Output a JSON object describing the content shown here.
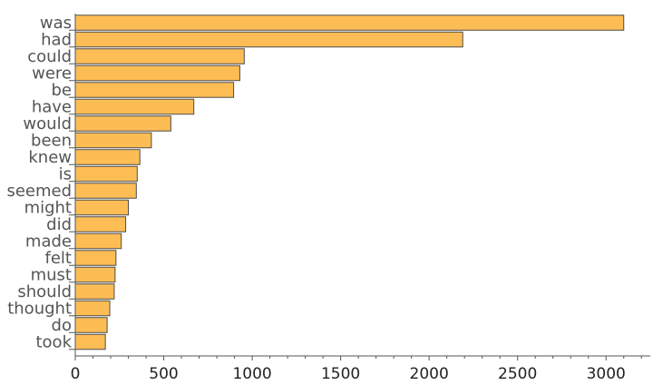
{
  "chart_data": {
    "type": "bar",
    "orientation": "horizontal",
    "categories": [
      "was",
      "had",
      "could",
      "were",
      "be",
      "have",
      "would",
      "been",
      "knew",
      "is",
      "seemed",
      "might",
      "did",
      "made",
      "felt",
      "must",
      "should",
      "thought",
      "do",
      "took"
    ],
    "values": [
      3100,
      2190,
      955,
      930,
      895,
      670,
      540,
      430,
      365,
      350,
      345,
      300,
      285,
      260,
      230,
      225,
      220,
      195,
      180,
      170
    ],
    "title": "",
    "xlabel": "",
    "ylabel": "",
    "xlim": [
      0,
      3250
    ],
    "x_ticks": [
      "0",
      "500",
      "1000",
      "1500",
      "2000",
      "2500",
      "3000"
    ],
    "grid": false,
    "legend": "none",
    "colors": {
      "bar_fill": "#fdbd55",
      "bar_edge": "#4d4d4d",
      "axis": "#555555"
    }
  }
}
